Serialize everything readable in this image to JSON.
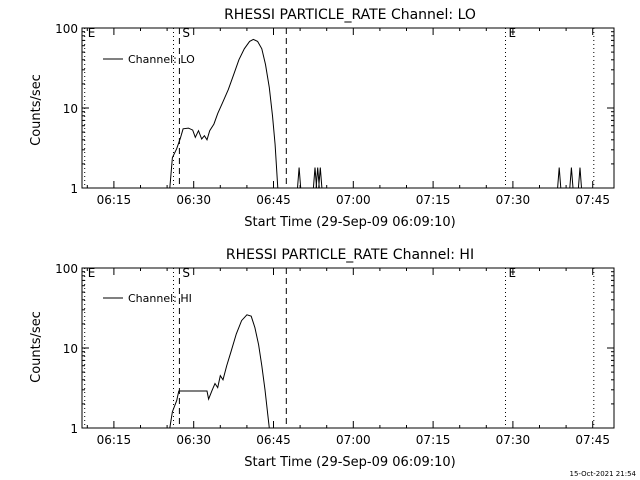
{
  "footer": {
    "timestamp": "15-Oct-2021 21:54"
  },
  "chart_data": [
    {
      "type": "line",
      "title": "RHESSI PARTICLE_RATE Channel: LO",
      "xlabel": "Start Time (29-Sep-09 06:09:10)",
      "ylabel": "Counts/sec",
      "yscale": "log",
      "ylim": [
        1,
        100
      ],
      "xlim": [
        "06:09",
        "07:49"
      ],
      "xticks": [
        "06:15",
        "06:30",
        "06:45",
        "07:00",
        "07:15",
        "07:30",
        "07:45"
      ],
      "yticks": [
        "1",
        "10",
        "100"
      ],
      "legend": {
        "label": "Channel: LO",
        "placement": "top-left"
      },
      "markers": [
        {
          "label": "E",
          "time": "06:09.5",
          "style": "dotted"
        },
        {
          "label": "",
          "time": "06:26.2",
          "style": "dotted"
        },
        {
          "label": "S",
          "time": "06:27.3",
          "style": "dashed"
        },
        {
          "label": "",
          "time": "06:47.4",
          "style": "dashed"
        },
        {
          "label": "E",
          "time": "07:28.6",
          "style": "dotted"
        },
        {
          "label": "",
          "time": "07:45.2",
          "style": "dotted"
        }
      ],
      "series": [
        {
          "name": "Channel: LO",
          "points": [
            [
              "06:25.5",
              1
            ],
            [
              "06:26.0",
              2.4
            ],
            [
              "06:26.8",
              3.1
            ],
            [
              "06:27.5",
              4.2
            ],
            [
              "06:28.0",
              5.5
            ],
            [
              "06:29.0",
              5.6
            ],
            [
              "06:29.8",
              5.3
            ],
            [
              "06:30.3",
              4.3
            ],
            [
              "06:30.9",
              5.2
            ],
            [
              "06:31.5",
              4.1
            ],
            [
              "06:32.0",
              4.5
            ],
            [
              "06:32.5",
              4.0
            ],
            [
              "06:33.0",
              5.2
            ],
            [
              "06:33.8",
              6.3
            ],
            [
              "06:34.5",
              8.5
            ],
            [
              "06:35.5",
              12
            ],
            [
              "06:36.5",
              17
            ],
            [
              "06:37.5",
              26
            ],
            [
              "06:38.5",
              40
            ],
            [
              "06:39.5",
              55
            ],
            [
              "06:40.5",
              68
            ],
            [
              "06:41.2",
              72
            ],
            [
              "06:42.0",
              68
            ],
            [
              "06:42.8",
              55
            ],
            [
              "06:43.5",
              35
            ],
            [
              "06:44.2",
              18
            ],
            [
              "06:44.8",
              8
            ],
            [
              "06:45.3",
              3.5
            ],
            [
              "06:45.8",
              1
            ]
          ],
          "spikes": [
            [
              "06:49.8",
              1.8
            ],
            [
              "06:52.8",
              1.8
            ],
            [
              "06:53.3",
              1.8
            ],
            [
              "06:53.8",
              1.8
            ],
            [
              "07:38.7",
              1.8
            ],
            [
              "07:41.0",
              1.8
            ],
            [
              "07:42.6",
              1.8
            ]
          ]
        }
      ]
    },
    {
      "type": "line",
      "title": "RHESSI PARTICLE_RATE Channel: HI",
      "xlabel": "Start Time (29-Sep-09 06:09:10)",
      "ylabel": "Counts/sec",
      "yscale": "log",
      "ylim": [
        1,
        100
      ],
      "xlim": [
        "06:09",
        "07:49"
      ],
      "xticks": [
        "06:15",
        "06:30",
        "06:45",
        "07:00",
        "07:15",
        "07:30",
        "07:45"
      ],
      "yticks": [
        "1",
        "10",
        "100"
      ],
      "legend": {
        "label": "Channel: HI",
        "placement": "top-left"
      },
      "markers": [
        {
          "label": "E",
          "time": "06:09.5",
          "style": "dotted"
        },
        {
          "label": "",
          "time": "06:26.2",
          "style": "dotted"
        },
        {
          "label": "S",
          "time": "06:27.3",
          "style": "dashed"
        },
        {
          "label": "",
          "time": "06:47.4",
          "style": "dashed"
        },
        {
          "label": "E",
          "time": "07:28.6",
          "style": "dotted"
        },
        {
          "label": "",
          "time": "07:45.2",
          "style": "dotted"
        }
      ],
      "series": [
        {
          "name": "Channel: HI",
          "points": [
            [
              "06:25.5",
              1
            ],
            [
              "06:26.0",
              1.6
            ],
            [
              "06:26.8",
              2.2
            ],
            [
              "06:27.2",
              2.9
            ],
            [
              "06:32.5",
              2.9
            ],
            [
              "06:32.8",
              2.3
            ],
            [
              "06:33.5",
              3.0
            ],
            [
              "06:34.0",
              3.6
            ],
            [
              "06:34.5",
              3.2
            ],
            [
              "06:35.0",
              4.5
            ],
            [
              "06:35.5",
              4.0
            ],
            [
              "06:36.2",
              6.0
            ],
            [
              "06:37.0",
              9.0
            ],
            [
              "06:38.0",
              15
            ],
            [
              "06:39.0",
              22
            ],
            [
              "06:40.0",
              26
            ],
            [
              "06:40.8",
              25
            ],
            [
              "06:41.5",
              18
            ],
            [
              "06:42.2",
              11
            ],
            [
              "06:42.8",
              6
            ],
            [
              "06:43.4",
              3
            ],
            [
              "06:43.9",
              1.5
            ],
            [
              "06:44.2",
              1
            ]
          ],
          "spikes": []
        }
      ]
    }
  ]
}
